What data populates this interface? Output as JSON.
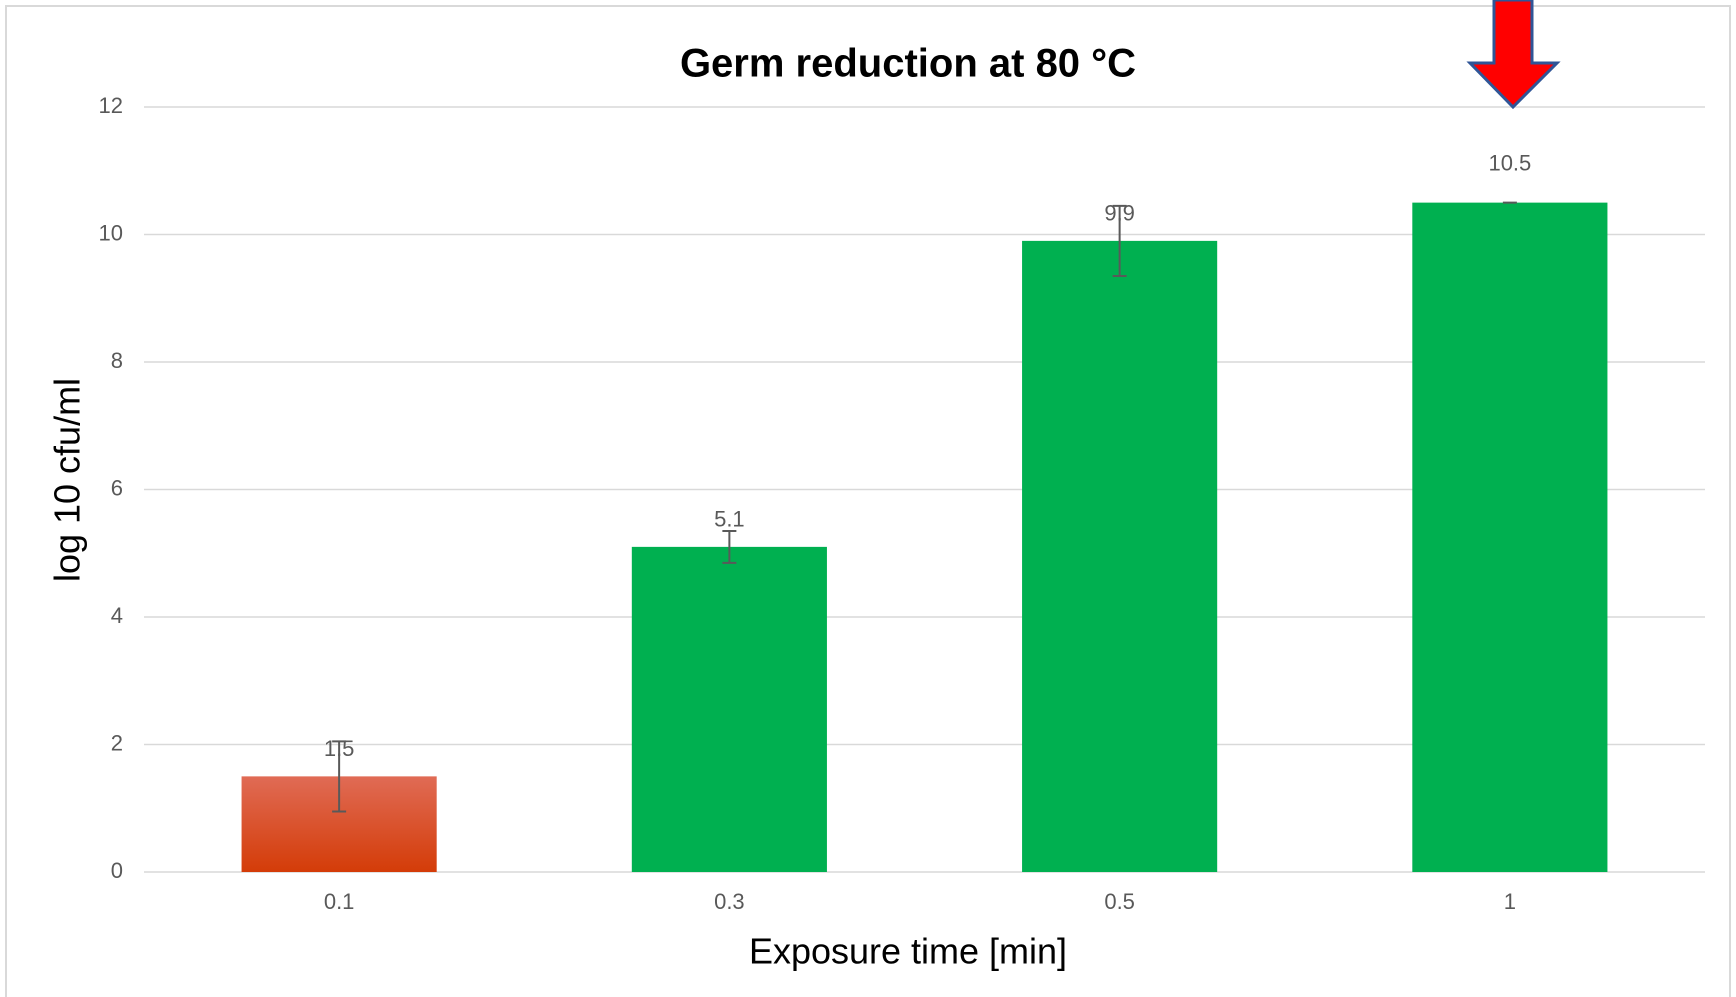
{
  "chart_data": {
    "type": "bar",
    "title": "Germ reduction at 80 °C",
    "x_label": "Exposure time [min]",
    "y_label": "log 10 cfu/ml",
    "categories": [
      "0.1",
      "0.3",
      "0.5",
      "1"
    ],
    "values": [
      1.5,
      5.1,
      9.9,
      10.5
    ],
    "errors": [
      0.55,
      0.25,
      0.55,
      0
    ],
    "colors": [
      "#d84315",
      "#00b050",
      "#00b050",
      "#00b050"
    ],
    "ylim": [
      0,
      12
    ],
    "yticks": [
      0,
      2,
      4,
      6,
      8,
      10,
      12
    ],
    "grid": true
  }
}
